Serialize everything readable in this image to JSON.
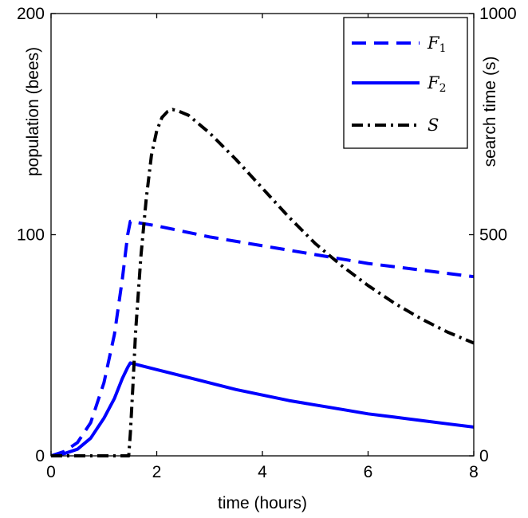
{
  "chart_data": {
    "type": "line",
    "xlabel": "time (hours)",
    "ylabel": "population (bees)",
    "ylabel_right": "search time (s)",
    "xlim": [
      0,
      8
    ],
    "ylim": [
      0,
      200
    ],
    "ylim_right": [
      0,
      1000
    ],
    "x_ticks": [
      "0",
      "2",
      "4",
      "6",
      "8"
    ],
    "y_ticks": [
      "0",
      "100",
      "200"
    ],
    "y_ticks_right": [
      "0",
      "500",
      "1000"
    ],
    "grid": false,
    "legend_position": "top-right",
    "series": [
      {
        "name": "F1",
        "name_main": "F",
        "name_sub": "1",
        "axis": "left",
        "style": "dashed",
        "color": "#0000ff",
        "x": [
          0,
          0.25,
          0.5,
          0.75,
          1.0,
          1.2,
          1.35,
          1.45,
          1.5,
          2,
          3,
          4,
          5,
          6,
          7,
          8
        ],
        "y": [
          0,
          2,
          6,
          15,
          33,
          55,
          80,
          100,
          106,
          104,
          99,
          95,
          91,
          87,
          84,
          81
        ]
      },
      {
        "name": "F2",
        "name_main": "F",
        "name_sub": "2",
        "axis": "left",
        "style": "solid",
        "color": "#0000ff",
        "x": [
          0,
          0.25,
          0.5,
          0.75,
          1.0,
          1.2,
          1.35,
          1.45,
          1.5,
          2,
          2.5,
          3,
          3.5,
          4,
          4.5,
          5,
          5.5,
          6,
          6.5,
          7,
          7.5,
          8
        ],
        "y": [
          0,
          1,
          3,
          8,
          17,
          26,
          35,
          40,
          42,
          39,
          36,
          33,
          30,
          27.5,
          25,
          23,
          21,
          19,
          17.5,
          16,
          14.5,
          13
        ]
      },
      {
        "name": "S",
        "name_main": "S",
        "name_sub": "",
        "axis": "right",
        "style": "dashdot",
        "color": "#000000",
        "x": [
          0,
          1.47,
          1.5,
          1.55,
          1.6,
          1.7,
          1.8,
          1.9,
          2.0,
          2.1,
          2.2,
          2.3,
          2.4,
          2.6,
          3,
          3.5,
          4,
          4.5,
          5,
          5.5,
          6,
          6.5,
          7,
          7.5,
          8
        ],
        "y": [
          0,
          0,
          50,
          160,
          280,
          450,
          580,
          680,
          735,
          765,
          778,
          783,
          780,
          770,
          730,
          670,
          605,
          540,
          480,
          430,
          385,
          345,
          310,
          280,
          255
        ]
      }
    ]
  }
}
